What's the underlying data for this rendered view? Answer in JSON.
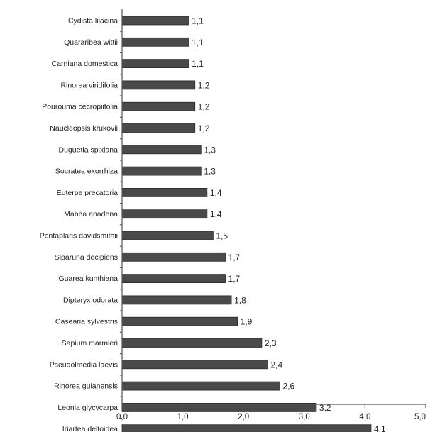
{
  "chart_data": {
    "type": "bar",
    "orientation": "horizontal",
    "categories": [
      "Cydista lilacina",
      "Quararibea wittii",
      "Carniana domestica",
      "Rinorea viridifolia",
      "Pourouma cecropiifolia",
      "Naucleopsis krukovii",
      "Duguetia spixiana",
      "Socratea exorrhiza",
      "Euterpe precatoria",
      "Mabea anadena",
      "Pentaplaris davidsmithii",
      "Siparuna decipiens",
      "Guarea kunthiana",
      "Dipteryx odorata",
      "Casearia sylvestris",
      "Sapium marmieri",
      "Pseudolmedia laevis",
      "Rinorea guianensis",
      "Leonia glycycarpa",
      "Iriartea deltoidea"
    ],
    "values": [
      1.1,
      1.1,
      1.1,
      1.2,
      1.2,
      1.2,
      1.3,
      1.3,
      1.4,
      1.4,
      1.5,
      1.7,
      1.7,
      1.8,
      1.9,
      2.3,
      2.4,
      2.6,
      3.2,
      4.1
    ],
    "value_labels": [
      "1,1",
      "1,1",
      "1,1",
      "1,2",
      "1,2",
      "1,2",
      "1,3",
      "1,3",
      "1,4",
      "1,4",
      "1,5",
      "1,7",
      "1,7",
      "1,8",
      "1,9",
      "2,3",
      "2,4",
      "2,6",
      "3,2",
      "4,1"
    ],
    "xlim": [
      0,
      5
    ],
    "xticks": [
      0,
      1,
      2,
      3,
      4,
      5
    ],
    "xtick_labels": [
      "0,0",
      "1,0",
      "2,0",
      "3,0",
      "4,0",
      "5,0"
    ],
    "title": "",
    "xlabel": "",
    "ylabel": "",
    "grid": false,
    "legend": "none",
    "bar_color": "#4a4a4a"
  }
}
